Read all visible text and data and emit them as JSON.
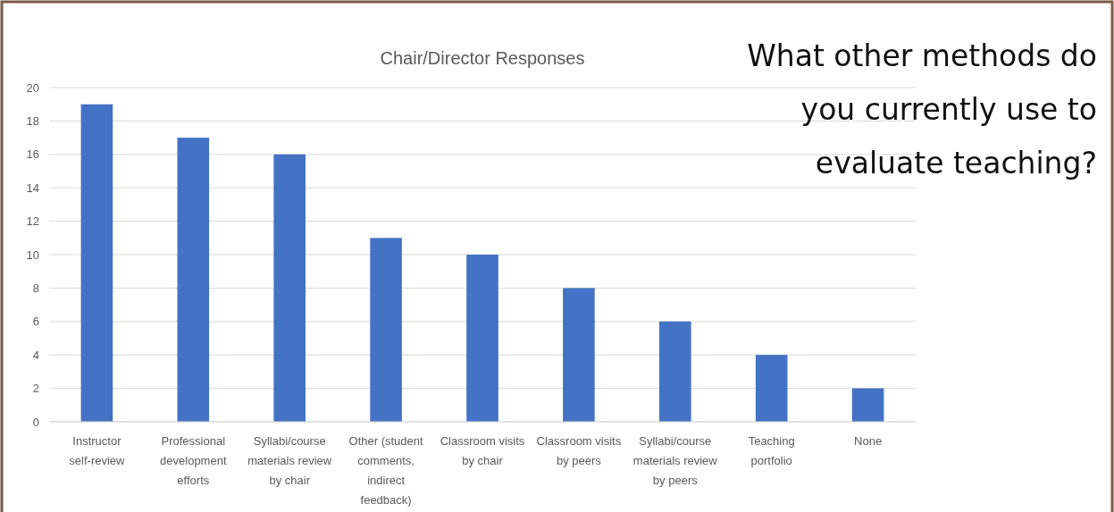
{
  "chart_data": {
    "type": "bar",
    "title": "Chair/Director Responses",
    "categories": [
      "Instructor self-review",
      "Professional development efforts",
      "Syllabi/course materials review by chair",
      "Other (student comments, indirect feedback)",
      "Classroom visits by chair",
      "Classroom visits by peers",
      "Syllabi/course materials review by peers",
      "Teaching portfolio",
      "None"
    ],
    "values": [
      19,
      17,
      16,
      11,
      10,
      8,
      6,
      4,
      2
    ],
    "color": "#4472c4",
    "ylim": [
      0,
      20
    ],
    "yticks": [
      0,
      2,
      4,
      6,
      8,
      10,
      12,
      14,
      16,
      18,
      20
    ],
    "grid": "y",
    "annotations": [
      "What other methods do you currently use to evaluate teaching?"
    ]
  }
}
